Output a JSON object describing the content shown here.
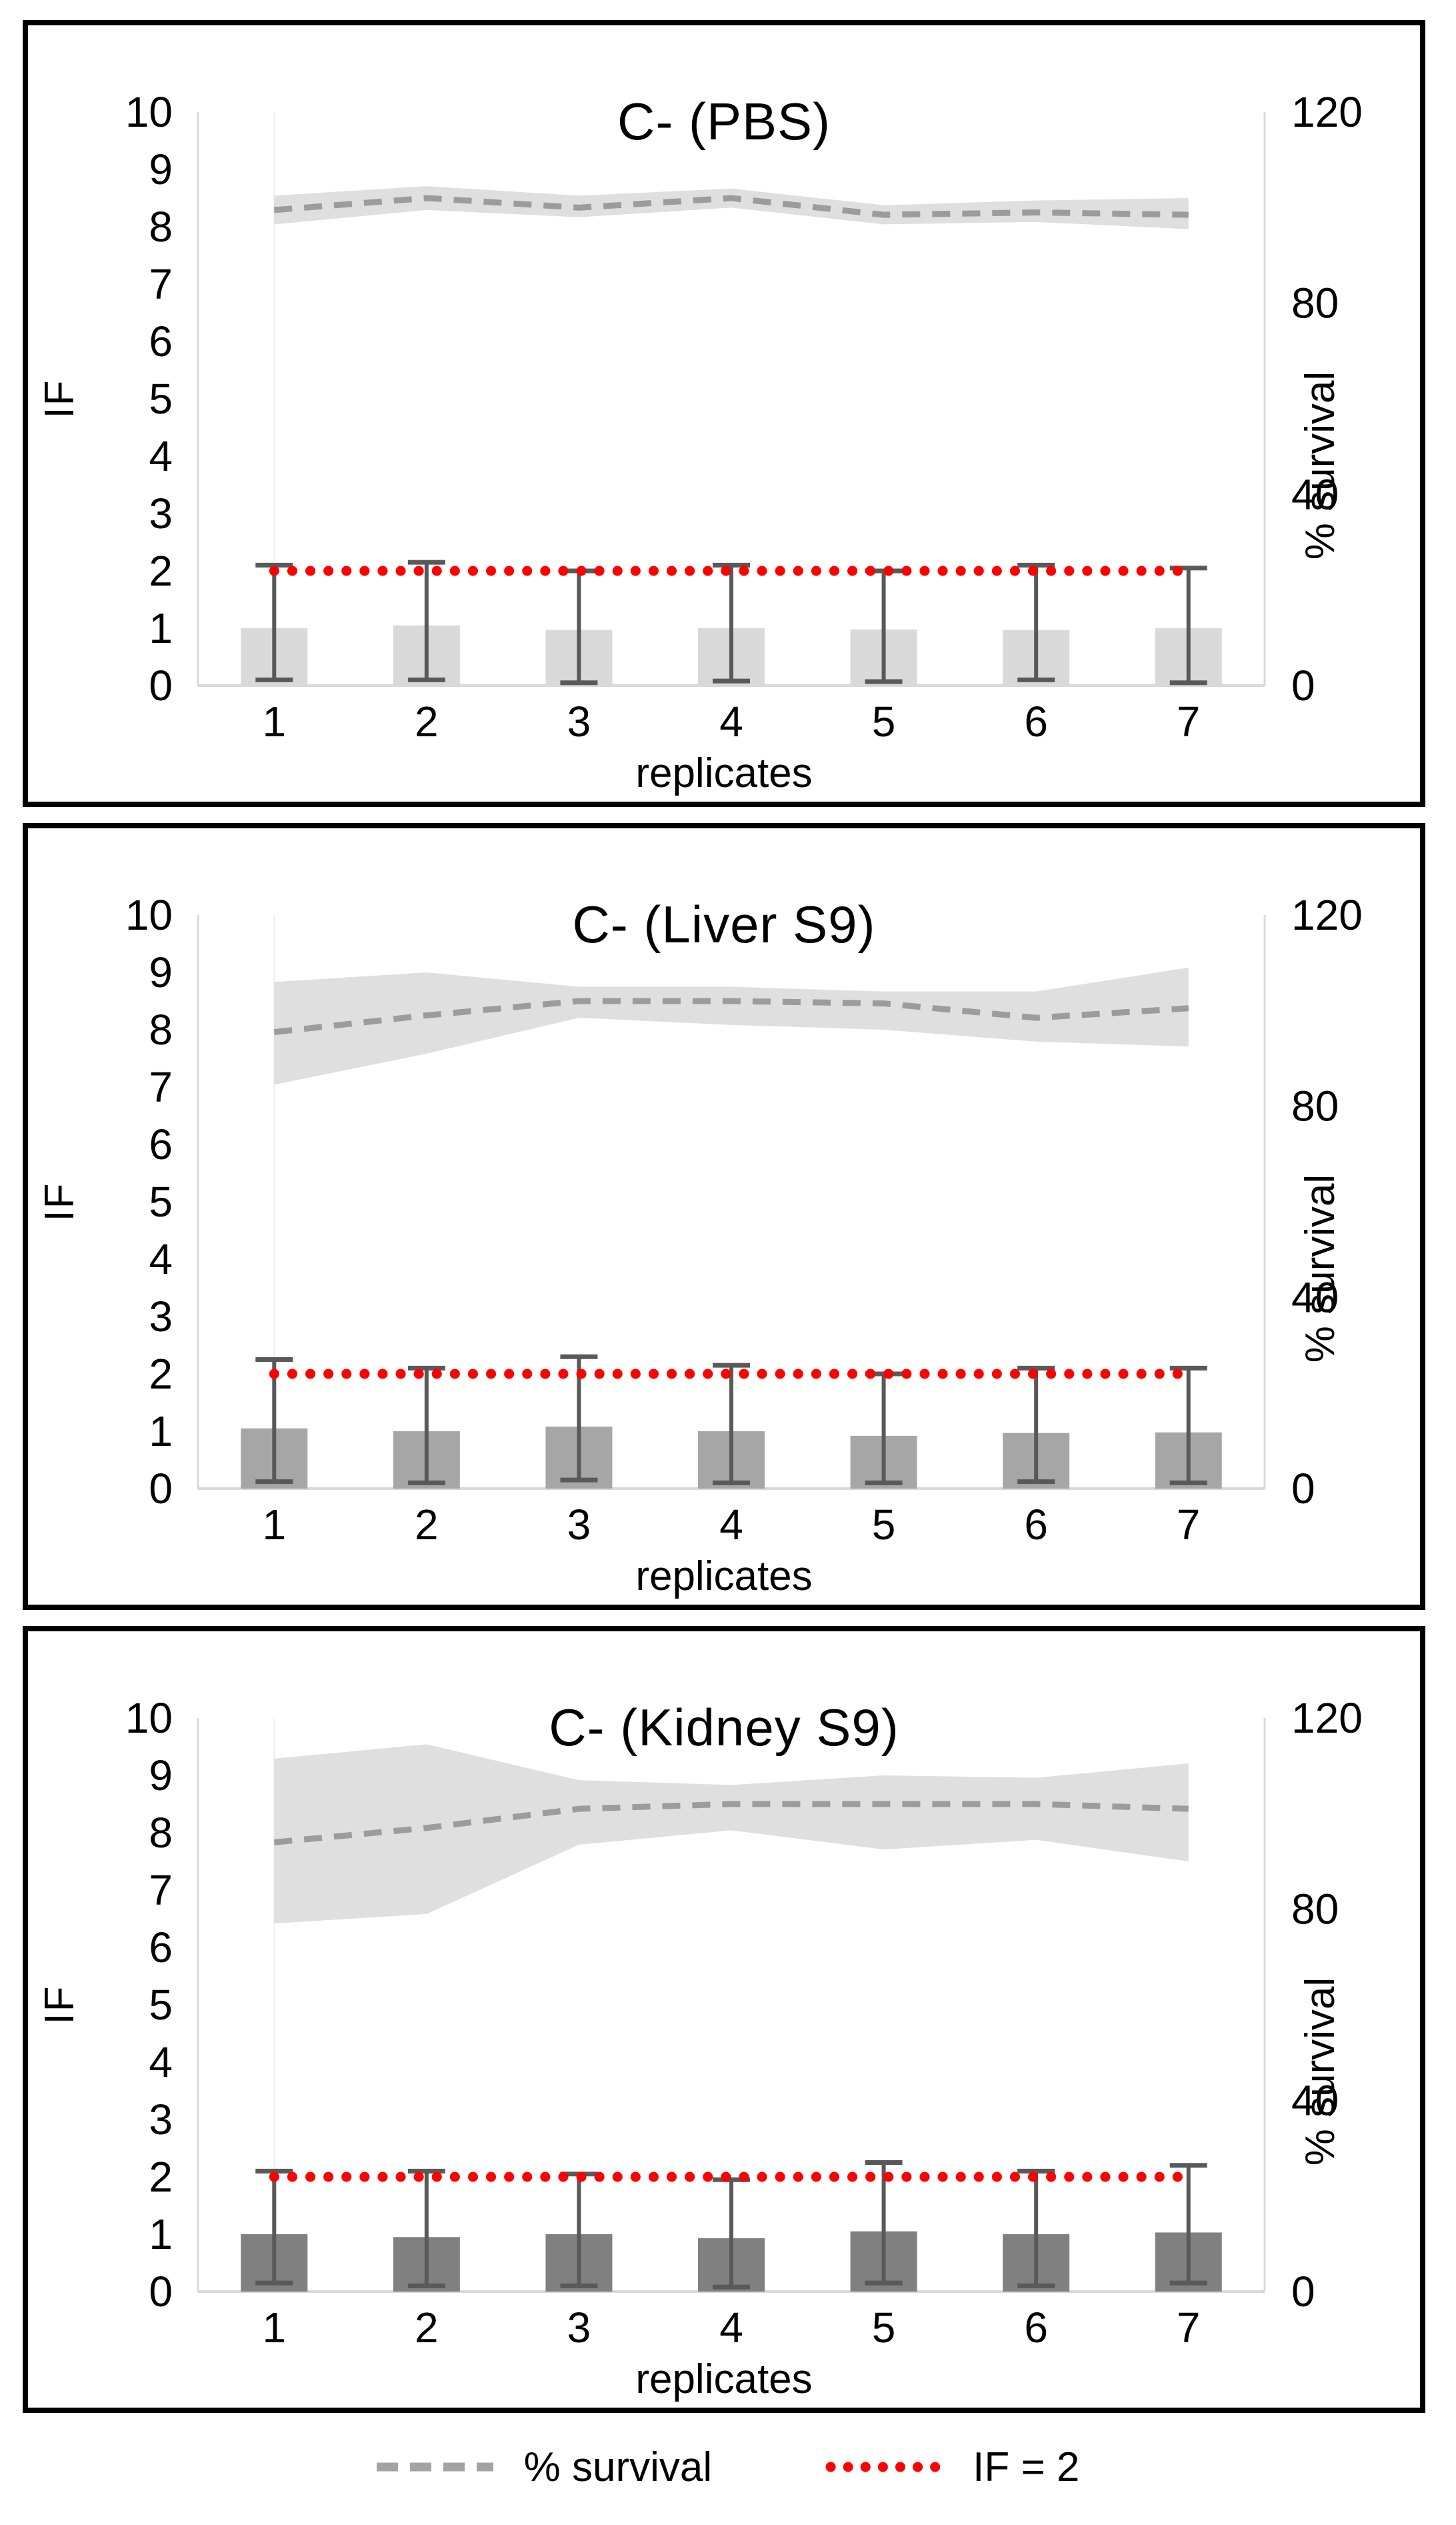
{
  "figure": {
    "legend": [
      {
        "label": "% survival",
        "swatch": "gray-dashed-line",
        "color": "#a3a3a3"
      },
      {
        "label": "IF = 2",
        "swatch": "red-dotted-line",
        "color": "#ff0000"
      }
    ]
  },
  "chart_data": [
    {
      "type": "bar",
      "subtype": "combo-bar-line-band",
      "title": "C- (PBS)",
      "xlabel": "replicates",
      "ylabel_left": "IF",
      "ylabel_right": "% survival",
      "categories": [
        1,
        2,
        3,
        4,
        5,
        6,
        7
      ],
      "ylim_left": [
        0,
        10
      ],
      "yticks_left": [
        0,
        1,
        2,
        3,
        4,
        5,
        6,
        7,
        8,
        9,
        10
      ],
      "ylim_right": [
        0,
        120
      ],
      "yticks_right": [
        0,
        40,
        80,
        120
      ],
      "grid": false,
      "legend_position": "bottom-shared",
      "bar_series": {
        "name": "IF",
        "axis": "left",
        "color": "#d9d9d9",
        "values": [
          1.0,
          1.05,
          0.97,
          1.0,
          0.98,
          0.97,
          1.0
        ],
        "error_high": [
          2.1,
          2.15,
          2.0,
          2.1,
          2.0,
          2.1,
          2.05
        ],
        "error_low": [
          0.1,
          0.1,
          0.05,
          0.08,
          0.07,
          0.1,
          0.05
        ],
        "error_color": "#595959"
      },
      "line_series": {
        "name": "% survival",
        "axis": "right",
        "style": "dashed",
        "color": "#9c9c9c",
        "values": [
          99.5,
          102,
          100,
          102,
          98.5,
          99,
          98.5
        ]
      },
      "band": {
        "name": "survival-confidence-band",
        "axis": "right",
        "color": "#dcdcdc",
        "upper": [
          102.5,
          104.5,
          102.5,
          104,
          100.5,
          101.5,
          102
        ],
        "lower": [
          96.5,
          99.5,
          98,
          100,
          96.5,
          97,
          95.5
        ]
      },
      "threshold_line": {
        "name": "IF = 2",
        "axis": "left",
        "value": 2,
        "style": "dotted",
        "color": "#ff0000"
      }
    },
    {
      "type": "bar",
      "subtype": "combo-bar-line-band",
      "title": "C- (Liver S9)",
      "xlabel": "replicates",
      "ylabel_left": "IF",
      "ylabel_right": "% survival",
      "categories": [
        1,
        2,
        3,
        4,
        5,
        6,
        7
      ],
      "ylim_left": [
        0,
        10
      ],
      "yticks_left": [
        0,
        1,
        2,
        3,
        4,
        5,
        6,
        7,
        8,
        9,
        10
      ],
      "ylim_right": [
        0,
        120
      ],
      "yticks_right": [
        0,
        40,
        80,
        120
      ],
      "grid": false,
      "legend_position": "bottom-shared",
      "bar_series": {
        "name": "IF",
        "axis": "left",
        "color": "#a6a6a6",
        "values": [
          1.05,
          1.0,
          1.08,
          1.0,
          0.92,
          0.97,
          0.98
        ],
        "error_high": [
          2.25,
          2.1,
          2.3,
          2.15,
          2.0,
          2.1,
          2.1
        ],
        "error_low": [
          0.12,
          0.1,
          0.15,
          0.1,
          0.1,
          0.12,
          0.1
        ],
        "error_color": "#595959"
      },
      "line_series": {
        "name": "% survival",
        "axis": "right",
        "style": "dashed",
        "color": "#9c9c9c",
        "values": [
          95.5,
          99,
          102,
          102,
          101.5,
          98.5,
          100.5
        ]
      },
      "band": {
        "name": "survival-confidence-band",
        "axis": "right",
        "color": "#dcdcdc",
        "upper": [
          106,
          108,
          105,
          105,
          104,
          104,
          109
        ],
        "lower": [
          84.5,
          91,
          98.5,
          97,
          96,
          93.5,
          92.5
        ]
      },
      "threshold_line": {
        "name": "IF = 2",
        "axis": "left",
        "value": 2,
        "style": "dotted",
        "color": "#ff0000"
      }
    },
    {
      "type": "bar",
      "subtype": "combo-bar-line-band",
      "title": "C- (Kidney S9)",
      "xlabel": "replicates",
      "ylabel_left": "IF",
      "ylabel_right": "% survival",
      "categories": [
        1,
        2,
        3,
        4,
        5,
        6,
        7
      ],
      "ylim_left": [
        0,
        10
      ],
      "yticks_left": [
        0,
        1,
        2,
        3,
        4,
        5,
        6,
        7,
        8,
        9,
        10
      ],
      "ylim_right": [
        0,
        120
      ],
      "yticks_right": [
        0,
        40,
        80,
        120
      ],
      "grid": false,
      "legend_position": "bottom-shared",
      "bar_series": {
        "name": "IF",
        "axis": "left",
        "color": "#808080",
        "values": [
          1.0,
          0.95,
          1.0,
          0.93,
          1.05,
          1.0,
          1.03
        ],
        "error_high": [
          2.1,
          2.1,
          2.05,
          1.95,
          2.25,
          2.1,
          2.2
        ],
        "error_low": [
          0.15,
          0.1,
          0.1,
          0.08,
          0.15,
          0.1,
          0.15
        ],
        "error_color": "#595959"
      },
      "line_series": {
        "name": "% survival",
        "axis": "right",
        "style": "dashed",
        "color": "#9c9c9c",
        "values": [
          94,
          97,
          101,
          102,
          102,
          102,
          101
        ]
      },
      "band": {
        "name": "survival-confidence-band",
        "axis": "right",
        "color": "#dcdcdc",
        "upper": [
          111.5,
          114.5,
          107,
          106,
          108,
          107.5,
          110.5
        ],
        "lower": [
          77,
          79,
          93.5,
          96.5,
          92.5,
          94.5,
          90
        ]
      },
      "threshold_line": {
        "name": "IF = 2",
        "axis": "left",
        "value": 2,
        "style": "dotted",
        "color": "#ff0000"
      }
    }
  ]
}
